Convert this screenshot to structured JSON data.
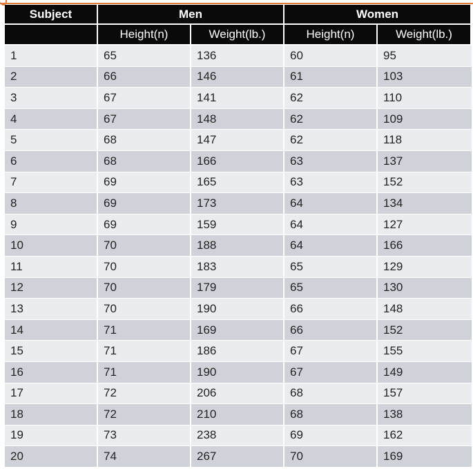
{
  "table": {
    "header_groups": {
      "subject": "Subject",
      "men": "Men",
      "women": "Women"
    },
    "sub_headers": {
      "men_height": "Height(n)",
      "men_weight": "Weight(lb.)",
      "women_height": "Height(n)",
      "women_weight": "Weight(lb.)"
    },
    "rows": [
      [
        "1",
        "65",
        "136",
        "60",
        "95"
      ],
      [
        "2",
        "66",
        "146",
        "61",
        "103"
      ],
      [
        "3",
        "67",
        "141",
        "62",
        "110"
      ],
      [
        "4",
        "67",
        "148",
        "62",
        "109"
      ],
      [
        "5",
        "68",
        "147",
        "62",
        "118"
      ],
      [
        "6",
        "68",
        "166",
        "63",
        "137"
      ],
      [
        "7",
        "69",
        "165",
        "63",
        "152"
      ],
      [
        "8",
        "69",
        "173",
        "64",
        "134"
      ],
      [
        "9",
        "69",
        "159",
        "64",
        "127"
      ],
      [
        "10",
        "70",
        "188",
        "64",
        "166"
      ],
      [
        "11",
        "70",
        "183",
        "65",
        "129"
      ],
      [
        "12",
        "70",
        "179",
        "65",
        "130"
      ],
      [
        "13",
        "70",
        "190",
        "66",
        "148"
      ],
      [
        "14",
        "71",
        "169",
        "66",
        "152"
      ],
      [
        "15",
        "71",
        "186",
        "67",
        "155"
      ],
      [
        "16",
        "71",
        "190",
        "67",
        "149"
      ],
      [
        "17",
        "72",
        "206",
        "68",
        "157"
      ],
      [
        "18",
        "72",
        "210",
        "68",
        "138"
      ],
      [
        "19",
        "73",
        "238",
        "69",
        "162"
      ],
      [
        "20",
        "74",
        "267",
        "70",
        "169"
      ]
    ]
  },
  "colors": {
    "header_bg": "#0a0a0a",
    "row_light": "#eaecef",
    "row_dark": "#cfd2d8",
    "accent_line": "#e07a38"
  }
}
